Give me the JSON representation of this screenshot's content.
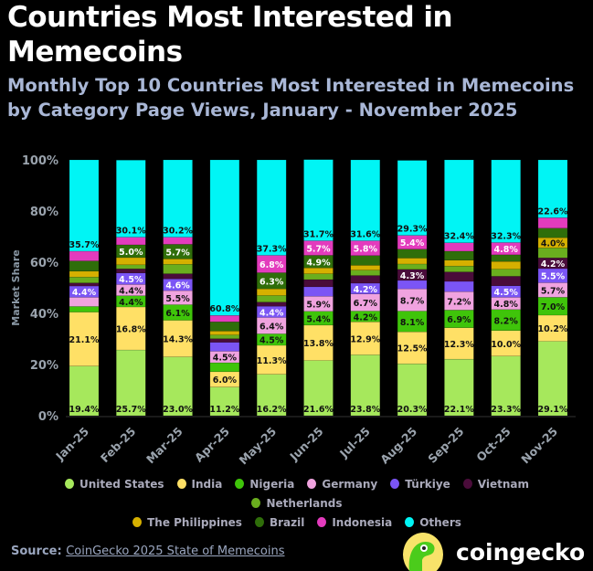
{
  "header": {
    "title": "Countries Most Interested in Memecoins",
    "subtitle": "Monthly Top 10 Countries Most Interested in Memecoins by Category Page Views, January - November 2025"
  },
  "footer": {
    "source_label": "Source:",
    "source_link": "CoinGecko 2025 State of Memecoins",
    "brand": "coingecko"
  },
  "chart_data": {
    "type": "bar",
    "stacked": true,
    "title": "",
    "xlabel": "",
    "ylabel": "Market Share",
    "ylim": [
      0,
      100
    ],
    "yticks": [
      "0%",
      "20%",
      "40%",
      "60%",
      "80%",
      "100%"
    ],
    "grid": false,
    "legend_position": "bottom",
    "categories": [
      "Jan-25",
      "Feb-25",
      "Mar-25",
      "Apr-25",
      "May-25",
      "Jun-25",
      "Jul-25",
      "Aug-25",
      "Sep-25",
      "Oct-25",
      "Nov-25"
    ],
    "series": [
      {
        "name": "United States",
        "color": "#a6e85c",
        "text": "#111",
        "values": [
          19.4,
          25.7,
          23.0,
          11.2,
          16.2,
          21.6,
          23.8,
          20.3,
          22.1,
          23.3,
          29.1
        ],
        "labels": [
          "19.4%",
          "25.7%",
          "23.0%",
          "11.2%",
          "16.2%",
          "21.6%",
          "23.8%",
          "20.3%",
          "22.1%",
          "23.3%",
          "29.1%"
        ]
      },
      {
        "name": "India",
        "color": "#ffe066",
        "text": "#111",
        "values": [
          21.1,
          16.8,
          14.3,
          6.0,
          11.3,
          13.8,
          12.9,
          12.5,
          12.3,
          10.0,
          10.2
        ],
        "labels": [
          "21.1%",
          "16.8%",
          "14.3%",
          "6.0%",
          "11.3%",
          "13.8%",
          "12.9%",
          "12.5%",
          "12.3%",
          "10.0%",
          "10.2%"
        ]
      },
      {
        "name": "Nigeria",
        "color": "#3fc40a",
        "text": "#111",
        "values": [
          2.2,
          4.4,
          6.1,
          3.5,
          4.5,
          5.4,
          4.2,
          8.1,
          6.9,
          8.2,
          7.0
        ],
        "labels": [
          "",
          "4.4%",
          "6.1%",
          "",
          "4.5%",
          "5.4%",
          "4.2%",
          "8.1%",
          "6.9%",
          "8.2%",
          "7.0%"
        ]
      },
      {
        "name": "Germany",
        "color": "#f0a3df",
        "text": "#111",
        "values": [
          3.6,
          4.4,
          5.5,
          4.5,
          6.4,
          5.9,
          6.7,
          8.7,
          7.2,
          4.8,
          5.7
        ],
        "labels": [
          "",
          "4.4%",
          "5.5%",
          "4.5%",
          "6.4%",
          "5.9%",
          "6.7%",
          "8.7%",
          "7.2%",
          "4.8%",
          "5.7%"
        ]
      },
      {
        "name": "Türkiye",
        "color": "#7b55f5",
        "text": "#fff",
        "values": [
          4.4,
          4.5,
          4.6,
          3.5,
          4.4,
          3.7,
          4.2,
          3.3,
          4.0,
          4.5,
          5.5
        ],
        "labels": [
          "4.4%",
          "4.5%",
          "4.6%",
          "",
          "4.4%",
          "",
          "4.2%",
          "",
          "",
          "4.5%",
          "5.5%"
        ]
      },
      {
        "name": "Vietnam",
        "color": "#4a0c3a",
        "text": "#fff",
        "values": [
          1.2,
          1.6,
          2.0,
          1.4,
          1.6,
          2.8,
          3.0,
          4.3,
          3.7,
          3.7,
          4.2
        ],
        "labels": [
          "",
          "",
          "",
          "",
          "",
          "",
          "",
          "4.3%",
          "",
          "",
          "4.2%"
        ]
      },
      {
        "name": "Netherlands",
        "color": "#6aae1e",
        "text": "#111",
        "values": [
          2.3,
          1.6,
          3.7,
          1.5,
          2.6,
          2.3,
          2.1,
          2.1,
          2.3,
          2.8,
          3.9
        ],
        "labels": [
          "",
          "",
          "",
          "",
          "",
          "",
          "",
          "",
          "",
          "",
          ""
        ]
      },
      {
        "name": "The Philippines",
        "color": "#d6b000",
        "text": "#111",
        "values": [
          2.3,
          2.8,
          2.1,
          1.5,
          2.6,
          2.3,
          1.9,
          2.3,
          2.3,
          3.0,
          4.0
        ],
        "labels": [
          "",
          "",
          "",
          "",
          "",
          "",
          "",
          "",
          "",
          "",
          "4.0%"
        ]
      },
      {
        "name": "Brazil",
        "color": "#2f6e0a",
        "text": "#fff",
        "values": [
          4.0,
          5.0,
          5.7,
          3.6,
          6.3,
          4.9,
          3.8,
          3.5,
          3.5,
          2.6,
          3.7
        ],
        "labels": [
          "",
          "5.0%",
          "5.7%",
          "",
          "6.3%",
          "4.9%",
          "",
          "",
          "",
          "",
          ""
        ]
      },
      {
        "name": "Indonesia",
        "color": "#e33bbd",
        "text": "#fff",
        "values": [
          3.8,
          3.0,
          2.8,
          2.5,
          6.8,
          5.7,
          5.8,
          5.4,
          3.3,
          4.8,
          4.1
        ],
        "labels": [
          "",
          "",
          "",
          "",
          "6.8%",
          "5.7%",
          "5.8%",
          "5.4%",
          "",
          "4.8%",
          ""
        ]
      },
      {
        "name": "Others",
        "color": "#00f5f5",
        "text": "#111",
        "values": [
          35.7,
          30.1,
          30.2,
          60.8,
          37.3,
          31.7,
          31.6,
          29.3,
          32.4,
          32.3,
          22.6
        ],
        "labels": [
          "35.7%",
          "30.1%",
          "30.2%",
          "60.8%",
          "37.3%",
          "31.7%",
          "31.6%",
          "29.3%",
          "32.4%",
          "32.3%",
          "22.6%"
        ]
      }
    ]
  }
}
